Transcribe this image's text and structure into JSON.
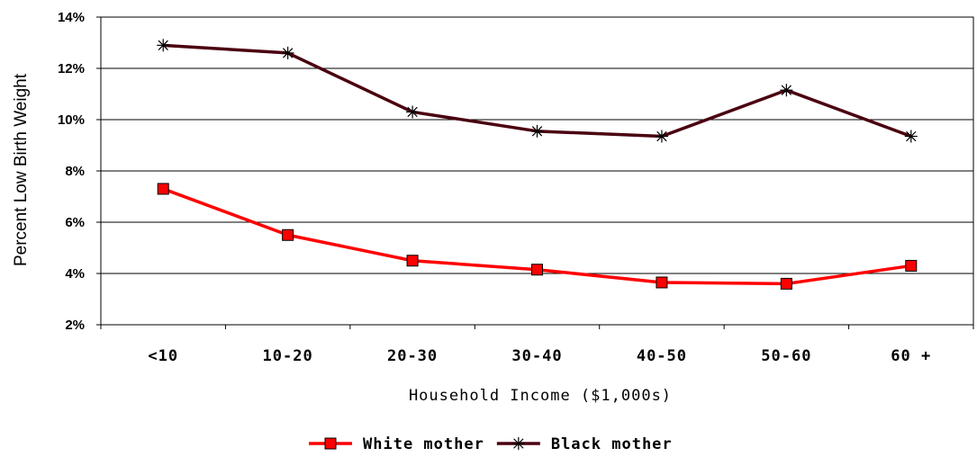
{
  "chart_data": {
    "type": "line",
    "title": "",
    "xlabel": "Household Income ($1,000s)",
    "ylabel": "Percent Low Birth Weight",
    "categories": [
      "<10",
      "10-20",
      "20-30",
      "30-40",
      "40-50",
      "50-60",
      "60 +"
    ],
    "y_ticks": [
      "2%",
      "4%",
      "6%",
      "8%",
      "10%",
      "12%",
      "14%"
    ],
    "ylim": [
      2,
      14
    ],
    "grid": "horizontal",
    "legend_position": "bottom",
    "series": [
      {
        "name": "White mother",
        "values": [
          7.3,
          5.5,
          4.5,
          4.15,
          3.65,
          3.6,
          4.3
        ],
        "color": "#ff0000",
        "marker": "square",
        "marker_color": "#ff0000"
      },
      {
        "name": "Black mother",
        "values": [
          12.9,
          12.6,
          10.3,
          9.55,
          9.35,
          11.15,
          9.35
        ],
        "color": "#4a0010",
        "marker": "asterisk",
        "marker_color": "#000000"
      }
    ]
  }
}
